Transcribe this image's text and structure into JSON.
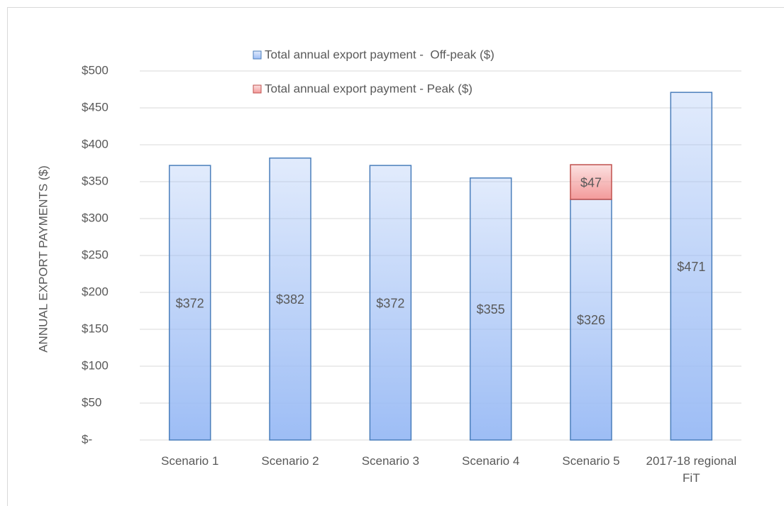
{
  "chart_data": {
    "type": "stacked_bar",
    "y_label": "ANNUAL EXPORT PAYMENTS ($)",
    "categories": [
      "Scenario 1",
      "Scenario 2",
      "Scenario 3",
      "Scenario 4",
      "Scenario 5",
      "2017-18 regional FiT"
    ],
    "series": [
      {
        "name": "Total annual export payment -  Off-peak ($)",
        "color": "#9dbdf5",
        "stroke": "#4a7ebb",
        "values": [
          372,
          382,
          372,
          355,
          326,
          471
        ],
        "value_labels": [
          "$372",
          "$382",
          "$372",
          "$355",
          "$326",
          "$471"
        ]
      },
      {
        "name": "Total annual export payment - Peak ($)",
        "color": "#f39a9a",
        "stroke": "#c0504d",
        "values": [
          null,
          null,
          null,
          null,
          47,
          null
        ],
        "value_labels": [
          null,
          null,
          null,
          null,
          "$47",
          null
        ]
      }
    ],
    "ylim": [
      0,
      500
    ],
    "yticks": [
      {
        "value": 0,
        "label": "$-"
      },
      {
        "value": 50,
        "label": "$50"
      },
      {
        "value": 100,
        "label": "$100"
      },
      {
        "value": 150,
        "label": "$150"
      },
      {
        "value": 200,
        "label": "$200"
      },
      {
        "value": 250,
        "label": "$250"
      },
      {
        "value": 300,
        "label": "$300"
      },
      {
        "value": 350,
        "label": "$350"
      },
      {
        "value": 400,
        "label": "$400"
      },
      {
        "value": 450,
        "label": "$450"
      },
      {
        "value": 500,
        "label": "$500"
      }
    ],
    "grid": true,
    "legend": "top"
  }
}
